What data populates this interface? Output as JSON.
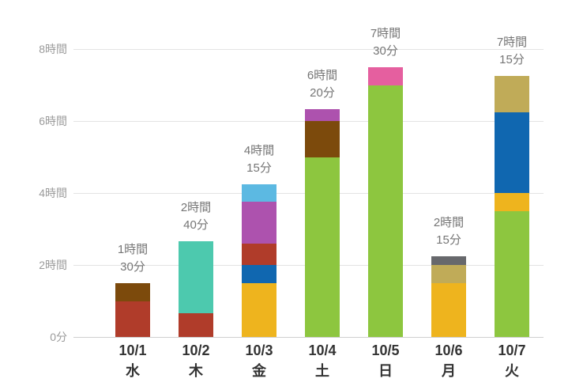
{
  "chart_data": {
    "type": "stacked_bar",
    "title": "",
    "legend": false,
    "grid": true,
    "y_axis": {
      "unit": "hours",
      "max": 8,
      "ticks": [
        {
          "label": "0分",
          "value": 0
        },
        {
          "label": "2時間",
          "value": 2
        },
        {
          "label": "4時間",
          "value": 4
        },
        {
          "label": "6時間",
          "value": 6
        },
        {
          "label": "8時間",
          "value": 8
        }
      ]
    },
    "bars": [
      {
        "date": "10/1",
        "weekday": "水",
        "total_label": [
          "1時間",
          "30分"
        ],
        "total_hours": 1.5,
        "segments": [
          {
            "color": "#b03c2a",
            "hours": 1.0
          },
          {
            "color": "#7c4a0c",
            "hours": 0.5
          }
        ]
      },
      {
        "date": "10/2",
        "weekday": "木",
        "total_label": [
          "2時間",
          "40分"
        ],
        "total_hours": 2.667,
        "segments": [
          {
            "color": "#b03c2a",
            "hours": 0.667
          },
          {
            "color": "#4dc9ae",
            "hours": 2.0
          }
        ]
      },
      {
        "date": "10/3",
        "weekday": "金",
        "total_label": [
          "4時間",
          "15分"
        ],
        "total_hours": 4.25,
        "segments": [
          {
            "color": "#eeb41e",
            "hours": 1.5
          },
          {
            "color": "#1067b0",
            "hours": 0.5
          },
          {
            "color": "#b03c2a",
            "hours": 0.583
          },
          {
            "color": "#ad52ae",
            "hours": 1.167
          },
          {
            "color": "#5cb9e2",
            "hours": 0.5
          }
        ]
      },
      {
        "date": "10/4",
        "weekday": "土",
        "total_label": [
          "6時間",
          "20分"
        ],
        "total_hours": 6.333,
        "segments": [
          {
            "color": "#8dc63f",
            "hours": 5.0
          },
          {
            "color": "#7c4a0c",
            "hours": 1.0
          },
          {
            "color": "#ad52ae",
            "hours": 0.333
          }
        ]
      },
      {
        "date": "10/5",
        "weekday": "日",
        "total_label": [
          "7時間",
          "30分"
        ],
        "total_hours": 7.5,
        "segments": [
          {
            "color": "#8dc63f",
            "hours": 7.0
          },
          {
            "color": "#e55f9f",
            "hours": 0.5
          }
        ]
      },
      {
        "date": "10/6",
        "weekday": "月",
        "total_label": [
          "2時間",
          "15分"
        ],
        "total_hours": 2.25,
        "segments": [
          {
            "color": "#eeb41e",
            "hours": 1.5
          },
          {
            "color": "#c0ab58",
            "hours": 0.5
          },
          {
            "color": "#67686c",
            "hours": 0.25
          }
        ]
      },
      {
        "date": "10/7",
        "weekday": "火",
        "total_label": [
          "7時間",
          "15分"
        ],
        "total_hours": 7.25,
        "segments": [
          {
            "color": "#8dc63f",
            "hours": 3.5
          },
          {
            "color": "#eeb41e",
            "hours": 0.5
          },
          {
            "color": "#1067b0",
            "hours": 2.25
          },
          {
            "color": "#c0ab58",
            "hours": 1.0
          }
        ]
      }
    ],
    "colors": {
      "grid": "#e3e3e3",
      "baseline": "#cfcfcf",
      "axis_label": "#9b9b9b",
      "total_label": "#757575",
      "x_label": "#333333",
      "background": "#ffffff"
    }
  }
}
